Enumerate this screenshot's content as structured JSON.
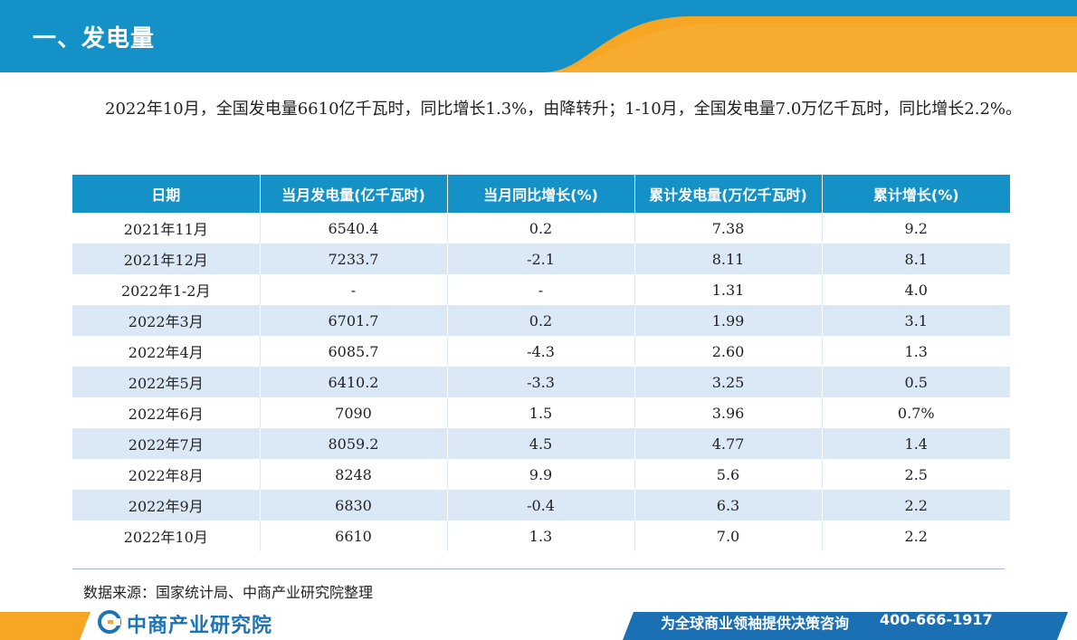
{
  "header": {
    "title": "一、发电量",
    "colors": {
      "primary": "#1492c8",
      "accent": "#f6a623"
    }
  },
  "summary": {
    "text": "2022年10月，全国发电量6610亿千瓦时，同比增长1.3%，由降转升；1-10月，全国发电量7.0万亿千瓦时，同比增长2.2%。"
  },
  "table": {
    "columns": [
      "日期",
      "当月发电量(亿千瓦时)",
      "当月同比增长(%)",
      "累计发电量(万亿千瓦时)",
      "累计增长(%)"
    ],
    "rows": [
      [
        "2021年11月",
        "6540.4",
        "0.2",
        "7.38",
        "9.2"
      ],
      [
        "2021年12月",
        "7233.7",
        "-2.1",
        "8.11",
        "8.1"
      ],
      [
        "2022年1-2月",
        "-",
        "-",
        "1.31",
        "4.0"
      ],
      [
        "2022年3月",
        "6701.7",
        "0.2",
        "1.99",
        "3.1"
      ],
      [
        "2022年4月",
        "6085.7",
        "-4.3",
        "2.60",
        "1.3"
      ],
      [
        "2022年5月",
        "6410.2",
        "-3.3",
        "3.25",
        "0.5"
      ],
      [
        "2022年6月",
        "7090",
        "1.5",
        "3.96",
        "0.7%"
      ],
      [
        "2022年7月",
        "8059.2",
        "4.5",
        "4.77",
        "1.4"
      ],
      [
        "2022年8月",
        "8248",
        "9.9",
        "5.6",
        "2.5"
      ],
      [
        "2022年9月",
        "6830",
        "-0.4",
        "6.3",
        "2.2"
      ],
      [
        "2022年10月",
        "6610",
        "1.3",
        "7.0",
        "2.2"
      ]
    ],
    "colors": {
      "header_bg": "#1492c8",
      "stripe": "#dbe9f7"
    }
  },
  "footer": {
    "source": "数据来源：国家统计局、中商产业研究院整理",
    "logo_text": "中商产业研究院",
    "slogan": "为全球商业领袖提供决策咨询",
    "phone": "400-666-1917",
    "logo_icon": "cs-logo-icon"
  }
}
